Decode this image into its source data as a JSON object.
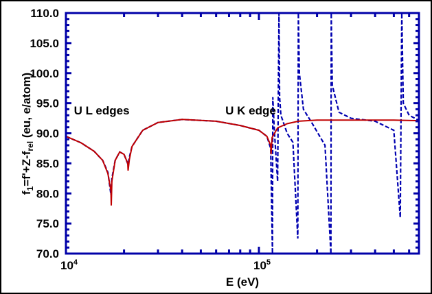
{
  "chart_data": {
    "type": "line",
    "title": "",
    "xlabel": "E  (eV)",
    "ylabel": "f1=f'+Z-frel  (eu,  e/atom)",
    "ylabel_parts": {
      "f": "f",
      "sub1": "1",
      "mid": "=f'+Z-f",
      "sub2": "rel",
      "units": "  (eu,  e/atom)"
    },
    "xscale": "log",
    "xlim": [
      10000,
      670000
    ],
    "ylim": [
      70.0,
      110.0
    ],
    "x_tick_labels": [
      {
        "base": "10",
        "exp": "4",
        "value": 10000
      },
      {
        "base": "10",
        "exp": "5",
        "value": 100000
      }
    ],
    "y_tick_labels": [
      "70.0",
      "75.0",
      "80.0",
      "85.0",
      "90.0",
      "95.0",
      "100.0",
      "105.0",
      "110.0"
    ],
    "grid": false,
    "annotations": [
      {
        "text": "U L edges",
        "x_eV": 11000,
        "y": 93.8
      },
      {
        "text": "U K edge",
        "x_eV": 67000,
        "y": 93.8
      }
    ],
    "series": [
      {
        "name": "solid (red)",
        "color": "#c00000",
        "style": "solid",
        "x": [
          10000,
          12000,
          14000,
          15500,
          16500,
          17100,
          17170,
          17300,
          18000,
          19000,
          20000,
          20900,
          21000,
          21300,
          22000,
          25000,
          30000,
          40000,
          60000,
          80000,
          100000,
          110000,
          115000,
          115600,
          117000,
          125000,
          140000,
          160000,
          200000,
          300000,
          500000,
          670000
        ],
        "y": [
          89.5,
          88.4,
          87.0,
          85.5,
          83.3,
          80.5,
          78.0,
          82.0,
          85.5,
          86.9,
          86.5,
          85.0,
          83.8,
          85.6,
          87.8,
          90.5,
          91.8,
          92.3,
          92.0,
          91.3,
          90.5,
          89.5,
          88.0,
          86.5,
          89.3,
          90.9,
          91.6,
          92.0,
          92.2,
          92.2,
          92.2,
          92.1
        ]
      },
      {
        "name": "dashed (blue)",
        "color": "#0000b0",
        "style": "dashed",
        "x": [
          10000,
          12000,
          14000,
          15500,
          16500,
          17100,
          17300,
          18000,
          19000,
          20000,
          21000,
          21300,
          22000,
          25000,
          30000,
          40000,
          60000,
          80000,
          100000,
          110000,
          115000,
          117500,
          118000,
          120000,
          121000,
          125000,
          127000,
          128000,
          130000,
          140000,
          150000,
          159000,
          160000,
          162000,
          170000,
          190000,
          220000,
          236000,
          237000,
          240000,
          260000,
          300000,
          400000,
          500000,
          540000,
          550000,
          560000,
          600000,
          670000
        ],
        "y": [
          89.5,
          88.4,
          87.0,
          85.5,
          83.5,
          79.8,
          82.5,
          85.5,
          86.9,
          86.5,
          84.8,
          86.0,
          87.8,
          90.5,
          91.8,
          92.3,
          92.0,
          91.3,
          90.5,
          89.5,
          87.5,
          70.0,
          96.0,
          91.0,
          89.0,
          82.0,
          110.0,
          96.0,
          93.0,
          90.0,
          88.5,
          72.5,
          110.0,
          100.0,
          94.0,
          91.5,
          88.0,
          70.0,
          110.0,
          98.0,
          93.5,
          92.5,
          92.0,
          90.5,
          76.0,
          110.0,
          95.0,
          93.0,
          92.2
        ]
      }
    ]
  }
}
